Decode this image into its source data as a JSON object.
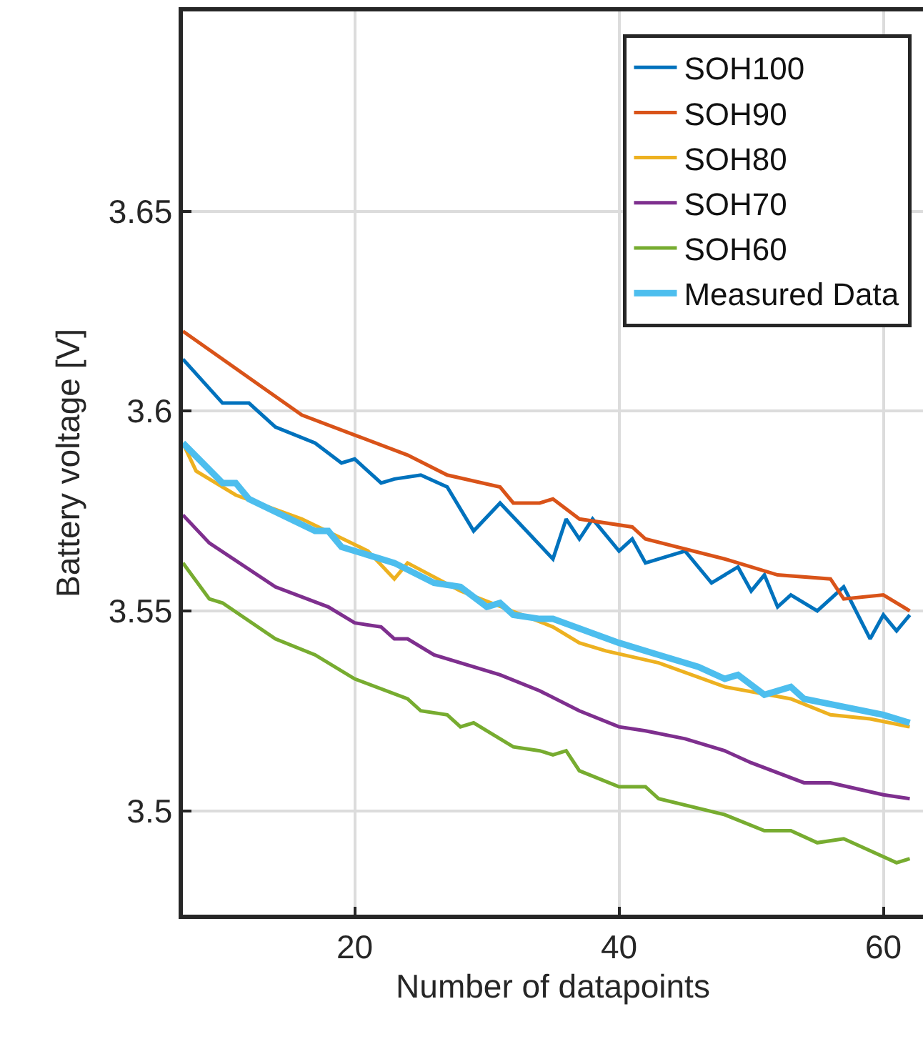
{
  "chart_data": {
    "type": "line",
    "xlabel": "Number of datapoints",
    "ylabel": "Battery voltage [V]",
    "xlim": [
      7,
      63
    ],
    "ylim": [
      3.474,
      3.7
    ],
    "xticks": [
      20,
      40,
      60
    ],
    "yticks": [
      3.5,
      3.55,
      3.6,
      3.65
    ],
    "grid": true,
    "legend": "top right",
    "line_style": "solid",
    "series": [
      {
        "name": "SOH100",
        "color": "#0072bd",
        "x": [
          7,
          10,
          12,
          14,
          17,
          19,
          20,
          22,
          23,
          25,
          27,
          29,
          31,
          33,
          35,
          36,
          37,
          38,
          40,
          41,
          42,
          45,
          47,
          49,
          50,
          51,
          52,
          53,
          55,
          57,
          59,
          60,
          61,
          62
        ],
        "values": [
          3.613,
          3.602,
          3.602,
          3.596,
          3.592,
          3.587,
          3.588,
          3.582,
          3.583,
          3.584,
          3.581,
          3.57,
          3.577,
          3.57,
          3.563,
          3.573,
          3.568,
          3.573,
          3.565,
          3.568,
          3.562,
          3.565,
          3.557,
          3.561,
          3.555,
          3.559,
          3.551,
          3.554,
          3.55,
          3.556,
          3.543,
          3.549,
          3.545,
          3.549
        ]
      },
      {
        "name": "SOH90",
        "color": "#d95319",
        "x": [
          7,
          13,
          16,
          20,
          24,
          27,
          31,
          32,
          34,
          35,
          37,
          41,
          42,
          48,
          52,
          56,
          57,
          60,
          62
        ],
        "values": [
          3.62,
          3.606,
          3.599,
          3.594,
          3.589,
          3.584,
          3.581,
          3.577,
          3.577,
          3.578,
          3.573,
          3.571,
          3.568,
          3.563,
          3.559,
          3.558,
          3.553,
          3.554,
          3.55
        ]
      },
      {
        "name": "SOH80",
        "color": "#edb120",
        "x": [
          7,
          8,
          11,
          16,
          21,
          23,
          24,
          28,
          32,
          35,
          37,
          39,
          43,
          48,
          53,
          56,
          59,
          62
        ],
        "values": [
          3.592,
          3.585,
          3.579,
          3.573,
          3.565,
          3.558,
          3.562,
          3.555,
          null,
          3.546,
          3.542,
          3.54,
          3.537,
          3.531,
          3.528,
          3.524,
          3.523,
          3.521
        ]
      },
      {
        "name": "SOH70",
        "color": "#7e2f8e",
        "x": [
          7,
          9,
          14,
          18,
          20,
          22,
          23,
          24,
          26,
          31,
          34,
          37,
          40,
          42,
          45,
          48,
          50,
          54,
          56,
          60,
          62
        ],
        "values": [
          3.574,
          3.567,
          3.556,
          3.551,
          3.547,
          3.546,
          3.543,
          3.543,
          3.539,
          3.534,
          3.53,
          3.525,
          3.521,
          3.52,
          3.518,
          3.515,
          3.512,
          3.507,
          3.507,
          3.504,
          3.503
        ]
      },
      {
        "name": "SOH60",
        "color": "#77ac30",
        "x": [
          7,
          9,
          10,
          14,
          17,
          20,
          24,
          25,
          27,
          28,
          29,
          32,
          34,
          35,
          36,
          37,
          40,
          42,
          43,
          48,
          51,
          53,
          55,
          57,
          61,
          62
        ],
        "values": [
          3.562,
          3.553,
          3.552,
          3.543,
          3.539,
          3.533,
          3.528,
          3.525,
          3.524,
          3.521,
          3.522,
          3.516,
          3.515,
          3.514,
          3.515,
          3.51,
          3.506,
          3.506,
          3.503,
          3.499,
          3.495,
          3.495,
          3.492,
          3.493,
          3.487,
          3.488
        ]
      },
      {
        "name": "Measured Data",
        "color": "#4dbeee",
        "x": [
          7,
          10,
          11,
          12,
          17,
          18,
          19,
          21,
          23,
          26,
          28,
          30,
          31,
          32,
          34,
          35,
          40,
          43,
          46,
          48,
          49,
          51,
          53,
          54,
          57,
          60,
          62
        ],
        "values": [
          3.592,
          3.582,
          3.582,
          3.578,
          3.57,
          3.57,
          3.566,
          3.564,
          3.562,
          3.557,
          3.556,
          3.551,
          3.552,
          3.549,
          3.548,
          3.548,
          3.542,
          3.539,
          3.536,
          3.533,
          3.534,
          3.529,
          3.531,
          3.528,
          3.526,
          3.524,
          3.522
        ]
      }
    ]
  }
}
